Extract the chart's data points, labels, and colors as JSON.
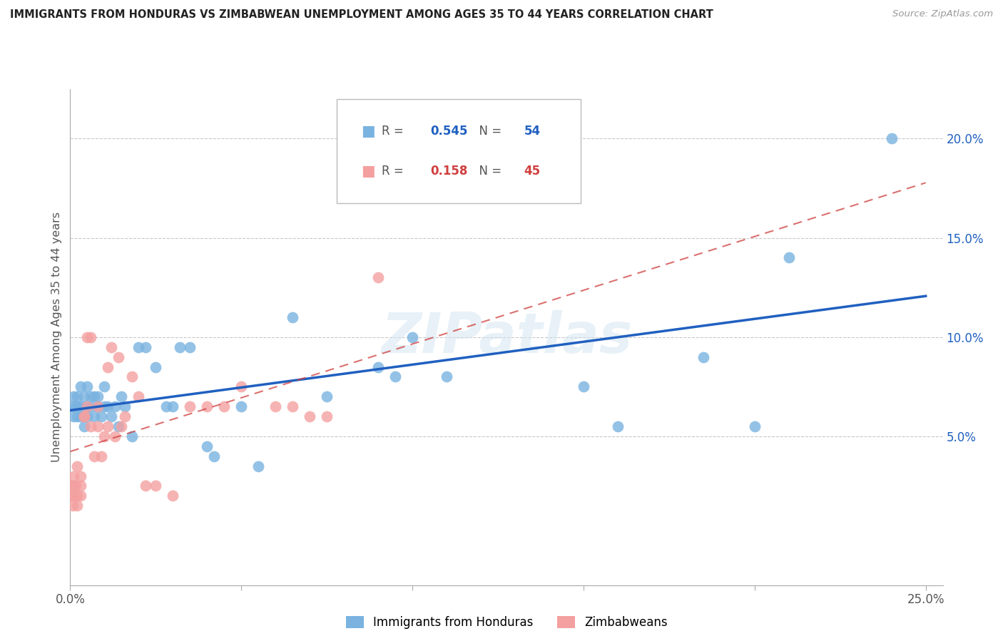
{
  "title": "IMMIGRANTS FROM HONDURAS VS ZIMBABWEAN UNEMPLOYMENT AMONG AGES 35 TO 44 YEARS CORRELATION CHART",
  "source": "Source: ZipAtlas.com",
  "ylabel": "Unemployment Among Ages 35 to 44 years",
  "xlim": [
    0.0,
    0.255
  ],
  "ylim": [
    -0.025,
    0.225
  ],
  "xticks": [
    0.0,
    0.05,
    0.1,
    0.15,
    0.2,
    0.25
  ],
  "yticks": [
    0.05,
    0.1,
    0.15,
    0.2
  ],
  "legend_labels": [
    "Immigrants from Honduras",
    "Zimbabweans"
  ],
  "blue_color": "#7ab3e0",
  "pink_color": "#f4a0a0",
  "blue_line_color": "#2060c0",
  "pink_line_color": "#d04040",
  "grid_color": "#c8c8c8",
  "background_color": "#ffffff",
  "watermark": "ZIPatlas",
  "R_blue": "0.545",
  "N_blue": "54",
  "R_pink": "0.158",
  "N_pink": "45",
  "blue_x": [
    0.0005,
    0.001,
    0.001,
    0.0015,
    0.002,
    0.002,
    0.0025,
    0.003,
    0.003,
    0.003,
    0.004,
    0.004,
    0.005,
    0.005,
    0.005,
    0.006,
    0.006,
    0.007,
    0.007,
    0.008,
    0.008,
    0.009,
    0.01,
    0.01,
    0.011,
    0.012,
    0.013,
    0.014,
    0.015,
    0.016,
    0.018,
    0.02,
    0.022,
    0.025,
    0.028,
    0.03,
    0.032,
    0.035,
    0.04,
    0.042,
    0.05,
    0.055,
    0.065,
    0.075,
    0.09,
    0.095,
    0.1,
    0.11,
    0.15,
    0.16,
    0.185,
    0.2,
    0.21,
    0.24
  ],
  "blue_y": [
    0.065,
    0.06,
    0.07,
    0.065,
    0.06,
    0.07,
    0.065,
    0.06,
    0.065,
    0.075,
    0.055,
    0.07,
    0.06,
    0.065,
    0.075,
    0.065,
    0.07,
    0.06,
    0.07,
    0.065,
    0.07,
    0.06,
    0.065,
    0.075,
    0.065,
    0.06,
    0.065,
    0.055,
    0.07,
    0.065,
    0.05,
    0.095,
    0.095,
    0.085,
    0.065,
    0.065,
    0.095,
    0.095,
    0.045,
    0.04,
    0.065,
    0.035,
    0.11,
    0.07,
    0.085,
    0.08,
    0.1,
    0.08,
    0.075,
    0.055,
    0.09,
    0.055,
    0.14,
    0.2
  ],
  "pink_x": [
    0.0003,
    0.0005,
    0.0008,
    0.001,
    0.001,
    0.001,
    0.0015,
    0.002,
    0.002,
    0.002,
    0.003,
    0.003,
    0.003,
    0.004,
    0.004,
    0.005,
    0.005,
    0.006,
    0.006,
    0.007,
    0.008,
    0.008,
    0.009,
    0.01,
    0.011,
    0.011,
    0.012,
    0.013,
    0.014,
    0.015,
    0.016,
    0.018,
    0.02,
    0.022,
    0.025,
    0.03,
    0.035,
    0.04,
    0.045,
    0.05,
    0.06,
    0.065,
    0.07,
    0.075,
    0.09
  ],
  "pink_y": [
    0.025,
    0.02,
    0.015,
    0.03,
    0.025,
    0.02,
    0.025,
    0.035,
    0.02,
    0.015,
    0.02,
    0.025,
    0.03,
    0.06,
    0.06,
    0.1,
    0.065,
    0.1,
    0.055,
    0.04,
    0.055,
    0.065,
    0.04,
    0.05,
    0.085,
    0.055,
    0.095,
    0.05,
    0.09,
    0.055,
    0.06,
    0.08,
    0.07,
    0.025,
    0.025,
    0.02,
    0.065,
    0.065,
    0.065,
    0.075,
    0.065,
    0.065,
    0.06,
    0.06,
    0.13
  ]
}
